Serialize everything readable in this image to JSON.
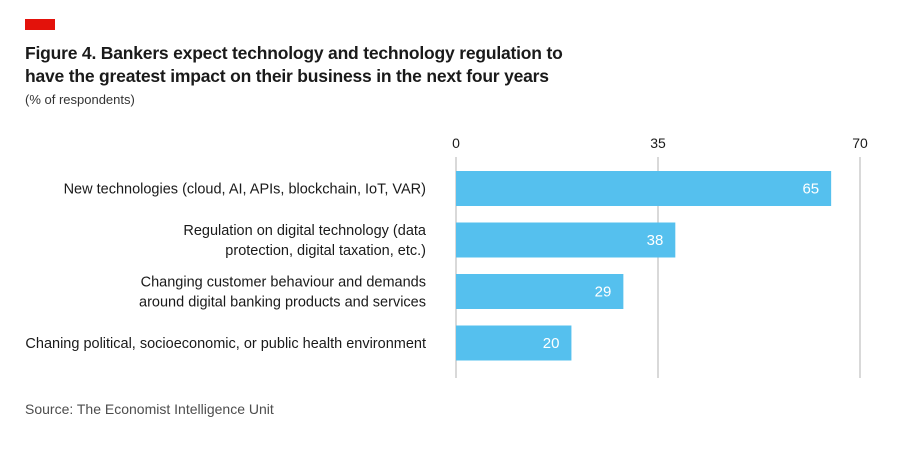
{
  "header": {
    "title": "Figure 4.  Bankers expect technology and technology regulation to have the greatest impact on their business in the next four years",
    "subtitle": "(% of respondents)"
  },
  "footer": {
    "source": "Source: The Economist Intelligence Unit"
  },
  "colors": {
    "accent": "#e3120b",
    "bar": "#55c0ee",
    "grid": "#b3b3b3"
  },
  "chart_data": {
    "type": "bar",
    "orientation": "horizontal",
    "title": "Figure 4.  Bankers expect technology and technology regulation to have the greatest impact on their business in the next four years",
    "ylabel": "(% of respondents)",
    "xlim": [
      0,
      70
    ],
    "xticks": [
      "0",
      "35",
      "70"
    ],
    "xtick_values": [
      0,
      35,
      70
    ],
    "grid": true,
    "categories": [
      [
        "New technologies (cloud, AI, APIs, blockchain, IoT, VAR)"
      ],
      [
        "Regulation on digital technology (data",
        "protection, digital taxation, etc.)"
      ],
      [
        "Changing customer behaviour and demands",
        "around digital banking products and services"
      ],
      [
        "Chaning political, socioeconomic, or public health environment"
      ]
    ],
    "values": [
      65,
      38,
      29,
      20
    ]
  }
}
